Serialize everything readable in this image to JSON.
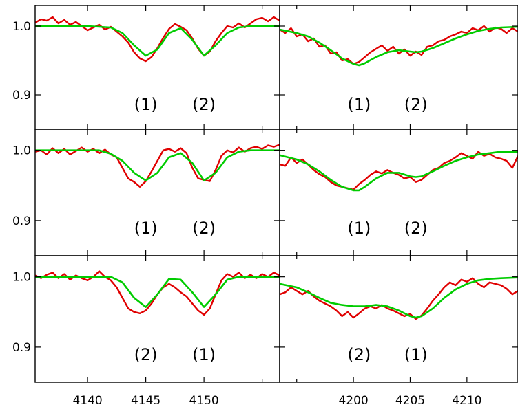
{
  "chart_data": {
    "type": "line",
    "layout": "3 rows x 2 columns of spectral-line panels sharing y axis per row",
    "colors": {
      "observed": "#e00000",
      "model": "#00cc00",
      "frame": "#000000"
    },
    "y_ticks": [
      0.9,
      1.0
    ],
    "y_tick_labels": [
      "0.9",
      "1.0"
    ],
    "columns": [
      {
        "xlim": [
          4135.5,
          4156.5
        ],
        "x_ticks": [
          4140,
          4145,
          4150
        ],
        "x_tick_labels": [
          "4140",
          "4145",
          "4150"
        ],
        "minor_x_ticks": [
          4155
        ]
      },
      {
        "xlim": [
          4193.5,
          4214.5
        ],
        "x_ticks": [
          4200,
          4205,
          4210
        ],
        "x_tick_labels": [
          "4200",
          "4205",
          "4210"
        ],
        "minor_x_ticks": [
          4195
        ]
      }
    ],
    "panels": [
      {
        "row": 0,
        "col": 0,
        "ylim": [
          0.85,
          1.03
        ],
        "component_labels": [
          {
            "text": "(1)",
            "x": 4145.0
          },
          {
            "text": "(2)",
            "x": 4150.0
          }
        ],
        "series": [
          {
            "role": "model",
            "x": [
              4135.5,
              4140,
              4142,
              4143,
              4144,
              4145,
              4146,
              4147,
              4148,
              4149,
              4150,
              4151,
              4152,
              4153,
              4154,
              4156.5
            ],
            "y": [
              1.0,
              1.0,
              0.998,
              0.99,
              0.972,
              0.957,
              0.966,
              0.99,
              0.997,
              0.98,
              0.957,
              0.972,
              0.99,
              0.998,
              1.0,
              1.0
            ]
          },
          {
            "role": "observed",
            "x": [
              4135.5,
              4136,
              4136.5,
              4137,
              4137.5,
              4138,
              4138.5,
              4139,
              4139.5,
              4140,
              4140.5,
              4141,
              4141.5,
              4142,
              4142.5,
              4143,
              4143.5,
              4144,
              4144.5,
              4145,
              4145.5,
              4146,
              4146.5,
              4147,
              4147.5,
              4148,
              4148.5,
              4149,
              4149.5,
              4150,
              4150.5,
              4151,
              4151.5,
              4152,
              4152.5,
              4153,
              4153.5,
              4154,
              4154.5,
              4155,
              4155.5,
              4156,
              4156.5
            ],
            "y": [
              1.005,
              1.01,
              1.008,
              1.013,
              1.004,
              1.009,
              1.002,
              1.006,
              1.0,
              0.994,
              0.998,
              1.002,
              0.995,
              0.999,
              0.992,
              0.985,
              0.976,
              0.962,
              0.953,
              0.949,
              0.955,
              0.968,
              0.983,
              0.996,
              1.003,
              0.999,
              0.994,
              0.982,
              0.967,
              0.957,
              0.963,
              0.978,
              0.99,
              1.0,
              0.998,
              1.004,
              0.998,
              1.004,
              1.01,
              1.012,
              1.007,
              1.013,
              1.008
            ]
          }
        ]
      },
      {
        "row": 0,
        "col": 1,
        "ylim": [
          0.85,
          1.03
        ],
        "component_labels": [
          {
            "text": "(1)",
            "x": 4200.5
          },
          {
            "text": "(2)",
            "x": 4205.5
          }
        ],
        "series": [
          {
            "role": "model",
            "x": [
              4193.5,
              4195,
              4196,
              4197,
              4198,
              4199,
              4200,
              4200.5,
              4201,
              4202,
              4203,
              4204,
              4205,
              4205.5,
              4206,
              4207,
              4208,
              4209,
              4210,
              4211,
              4212,
              4213,
              4214.5
            ],
            "y": [
              0.995,
              0.99,
              0.985,
              0.976,
              0.965,
              0.953,
              0.945,
              0.943,
              0.946,
              0.955,
              0.962,
              0.965,
              0.963,
              0.962,
              0.963,
              0.968,
              0.975,
              0.982,
              0.988,
              0.993,
              0.996,
              0.998,
              0.999
            ]
          },
          {
            "role": "observed",
            "x": [
              4193.5,
              4194,
              4194.5,
              4195,
              4195.5,
              4196,
              4196.5,
              4197,
              4197.5,
              4198,
              4198.5,
              4199,
              4199.5,
              4200,
              4200.5,
              4201,
              4201.5,
              4202,
              4202.5,
              4203,
              4203.5,
              4204,
              4204.5,
              4205,
              4205.5,
              4206,
              4206.5,
              4207,
              4207.5,
              4208,
              4208.5,
              4209,
              4209.5,
              4210,
              4210.5,
              4211,
              4211.5,
              4212,
              4212.5,
              4213,
              4213.5,
              4214,
              4214.5
            ],
            "y": [
              0.995,
              0.99,
              0.997,
              0.985,
              0.988,
              0.978,
              0.982,
              0.97,
              0.972,
              0.96,
              0.962,
              0.95,
              0.952,
              0.945,
              0.948,
              0.955,
              0.962,
              0.967,
              0.972,
              0.964,
              0.97,
              0.96,
              0.966,
              0.957,
              0.963,
              0.958,
              0.97,
              0.972,
              0.978,
              0.98,
              0.985,
              0.988,
              0.992,
              0.99,
              0.997,
              0.994,
              1.0,
              0.992,
              0.998,
              0.996,
              0.99,
              0.997,
              0.992
            ]
          }
        ]
      },
      {
        "row": 1,
        "col": 0,
        "ylim": [
          0.85,
          1.03
        ],
        "component_labels": [
          {
            "text": "(1)",
            "x": 4145.0
          },
          {
            "text": "(2)",
            "x": 4150.0
          }
        ],
        "series": [
          {
            "role": "model",
            "x": [
              4135.5,
              4141,
              4142,
              4143,
              4144,
              4145,
              4146,
              4147,
              4148,
              4149,
              4150,
              4151,
              4152,
              4153,
              4154,
              4156.5
            ],
            "y": [
              1.0,
              1.0,
              0.995,
              0.985,
              0.968,
              0.957,
              0.968,
              0.99,
              0.996,
              0.982,
              0.957,
              0.968,
              0.99,
              0.998,
              1.0,
              1.0
            ]
          },
          {
            "role": "observed",
            "x": [
              4135.5,
              4136,
              4136.5,
              4137,
              4137.5,
              4138,
              4138.5,
              4139,
              4139.5,
              4140,
              4140.5,
              4141,
              4141.5,
              4142,
              4142.5,
              4143,
              4143.5,
              4144,
              4144.5,
              4145,
              4145.5,
              4146,
              4146.5,
              4147,
              4147.5,
              4148,
              4148.5,
              4149,
              4149.5,
              4150,
              4150.5,
              4151,
              4151.5,
              4152,
              4152.5,
              4153,
              4153.5,
              4154,
              4154.5,
              4155,
              4155.5,
              4156,
              4156.5
            ],
            "y": [
              0.998,
              1.0,
              0.994,
              1.003,
              0.996,
              1.002,
              0.994,
              0.999,
              1.004,
              0.998,
              1.002,
              0.996,
              1.001,
              0.994,
              0.99,
              0.975,
              0.96,
              0.955,
              0.948,
              0.956,
              0.97,
              0.985,
              1.0,
              1.002,
              0.998,
              1.003,
              0.996,
              0.975,
              0.96,
              0.958,
              0.956,
              0.972,
              0.992,
              1.0,
              0.997,
              1.004,
              0.998,
              1.003,
              1.005,
              1.002,
              1.007,
              1.005,
              1.008
            ]
          }
        ]
      },
      {
        "row": 1,
        "col": 1,
        "ylim": [
          0.85,
          1.03
        ],
        "component_labels": [
          {
            "text": "(1)",
            "x": 4200.5
          },
          {
            "text": "(2)",
            "x": 4205.5
          }
        ],
        "series": [
          {
            "role": "model",
            "x": [
              4193.5,
              4195,
              4196,
              4197,
              4198,
              4199,
              4200,
              4200.5,
              4201,
              4202,
              4203,
              4204,
              4205,
              4205.5,
              4206,
              4207,
              4208,
              4209,
              4210,
              4211,
              4212,
              4213,
              4214.5
            ],
            "y": [
              0.993,
              0.987,
              0.98,
              0.97,
              0.958,
              0.948,
              0.943,
              0.943,
              0.948,
              0.96,
              0.968,
              0.968,
              0.963,
              0.962,
              0.963,
              0.97,
              0.978,
              0.985,
              0.99,
              0.994,
              0.996,
              0.998,
              0.998
            ]
          },
          {
            "role": "observed",
            "x": [
              4193.5,
              4194,
              4194.5,
              4195,
              4195.5,
              4196,
              4196.5,
              4197,
              4197.5,
              4198,
              4198.5,
              4199,
              4199.5,
              4200,
              4200.5,
              4201,
              4201.5,
              4202,
              4202.5,
              4203,
              4203.5,
              4204,
              4204.5,
              4205,
              4205.5,
              4206,
              4206.5,
              4207,
              4207.5,
              4208,
              4208.5,
              4209,
              4209.5,
              4210,
              4210.5,
              4211,
              4211.5,
              4212,
              4212.5,
              4213,
              4213.5,
              4214,
              4214.5
            ],
            "y": [
              0.98,
              0.978,
              0.99,
              0.982,
              0.987,
              0.98,
              0.972,
              0.966,
              0.962,
              0.955,
              0.95,
              0.948,
              0.946,
              0.944,
              0.952,
              0.958,
              0.965,
              0.97,
              0.967,
              0.972,
              0.968,
              0.965,
              0.96,
              0.962,
              0.955,
              0.958,
              0.965,
              0.972,
              0.975,
              0.982,
              0.985,
              0.99,
              0.996,
              0.992,
              0.988,
              0.998,
              0.992,
              0.995,
              0.99,
              0.988,
              0.985,
              0.975,
              0.992
            ]
          }
        ]
      },
      {
        "row": 2,
        "col": 0,
        "ylim": [
          0.85,
          1.03
        ],
        "component_labels": [
          {
            "text": "(2)",
            "x": 4145.0
          },
          {
            "text": "(1)",
            "x": 4150.0
          }
        ],
        "series": [
          {
            "role": "model",
            "x": [
              4135.5,
              4142,
              4143,
              4144,
              4145,
              4146,
              4147,
              4148,
              4149,
              4150,
              4151,
              4152,
              4153,
              4156.5
            ],
            "y": [
              1.0,
              1.0,
              0.992,
              0.97,
              0.957,
              0.975,
              0.997,
              0.996,
              0.978,
              0.957,
              0.975,
              0.996,
              1.0,
              1.0
            ]
          },
          {
            "role": "observed",
            "x": [
              4135.5,
              4136,
              4136.5,
              4137,
              4137.5,
              4138,
              4138.5,
              4139,
              4139.5,
              4140,
              4140.5,
              4141,
              4141.5,
              4142,
              4142.5,
              4143,
              4143.5,
              4144,
              4144.5,
              4145,
              4145.5,
              4146,
              4146.5,
              4147,
              4147.5,
              4148,
              4148.5,
              4149,
              4149.5,
              4150,
              4150.5,
              4151,
              4151.5,
              4152,
              4152.5,
              4153,
              4153.5,
              4154,
              4154.5,
              4155,
              4155.5,
              4156,
              4156.5
            ],
            "y": [
              1.002,
              0.998,
              1.003,
              1.006,
              0.998,
              1.004,
              0.996,
              1.002,
              0.998,
              0.995,
              1.0,
              1.008,
              1.0,
              0.995,
              0.985,
              0.97,
              0.955,
              0.95,
              0.948,
              0.952,
              0.962,
              0.975,
              0.985,
              0.99,
              0.985,
              0.978,
              0.972,
              0.962,
              0.952,
              0.946,
              0.955,
              0.975,
              0.995,
              1.004,
              1.0,
              1.006,
              0.998,
              1.003,
              0.998,
              1.004,
              1.0,
              1.006,
              1.002
            ]
          }
        ]
      },
      {
        "row": 2,
        "col": 1,
        "ylim": [
          0.85,
          1.03
        ],
        "component_labels": [
          {
            "text": "(2)",
            "x": 4200.5
          },
          {
            "text": "(1)",
            "x": 4205.5
          }
        ],
        "series": [
          {
            "role": "model",
            "x": [
              4193.5,
              4195,
              4196,
              4197,
              4198,
              4199,
              4200,
              4201,
              4202,
              4203,
              4204,
              4205,
              4205.5,
              4206,
              4207,
              4208,
              4209,
              4210,
              4211,
              4212,
              4213,
              4214.5
            ],
            "y": [
              0.99,
              0.985,
              0.978,
              0.97,
              0.963,
              0.96,
              0.958,
              0.958,
              0.96,
              0.958,
              0.952,
              0.944,
              0.942,
              0.944,
              0.955,
              0.97,
              0.982,
              0.99,
              0.995,
              0.997,
              0.998,
              0.999
            ]
          },
          {
            "role": "observed",
            "x": [
              4193.5,
              4194,
              4194.5,
              4195,
              4195.5,
              4196,
              4196.5,
              4197,
              4197.5,
              4198,
              4198.5,
              4199,
              4199.5,
              4200,
              4200.5,
              4201,
              4201.5,
              4202,
              4202.5,
              4203,
              4203.5,
              4204,
              4204.5,
              4205,
              4205.5,
              4206,
              4206.5,
              4207,
              4207.5,
              4208,
              4208.5,
              4209,
              4209.5,
              4210,
              4210.5,
              4211,
              4211.5,
              4212,
              4212.5,
              4213,
              4213.5,
              4214,
              4214.5
            ],
            "y": [
              0.975,
              0.978,
              0.985,
              0.98,
              0.975,
              0.98,
              0.972,
              0.966,
              0.962,
              0.958,
              0.952,
              0.944,
              0.95,
              0.942,
              0.948,
              0.955,
              0.958,
              0.955,
              0.96,
              0.955,
              0.952,
              0.948,
              0.944,
              0.947,
              0.94,
              0.945,
              0.955,
              0.966,
              0.975,
              0.985,
              0.992,
              0.988,
              0.996,
              0.993,
              0.998,
              0.99,
              0.985,
              0.992,
              0.99,
              0.988,
              0.983,
              0.975,
              0.98
            ]
          }
        ]
      }
    ]
  }
}
